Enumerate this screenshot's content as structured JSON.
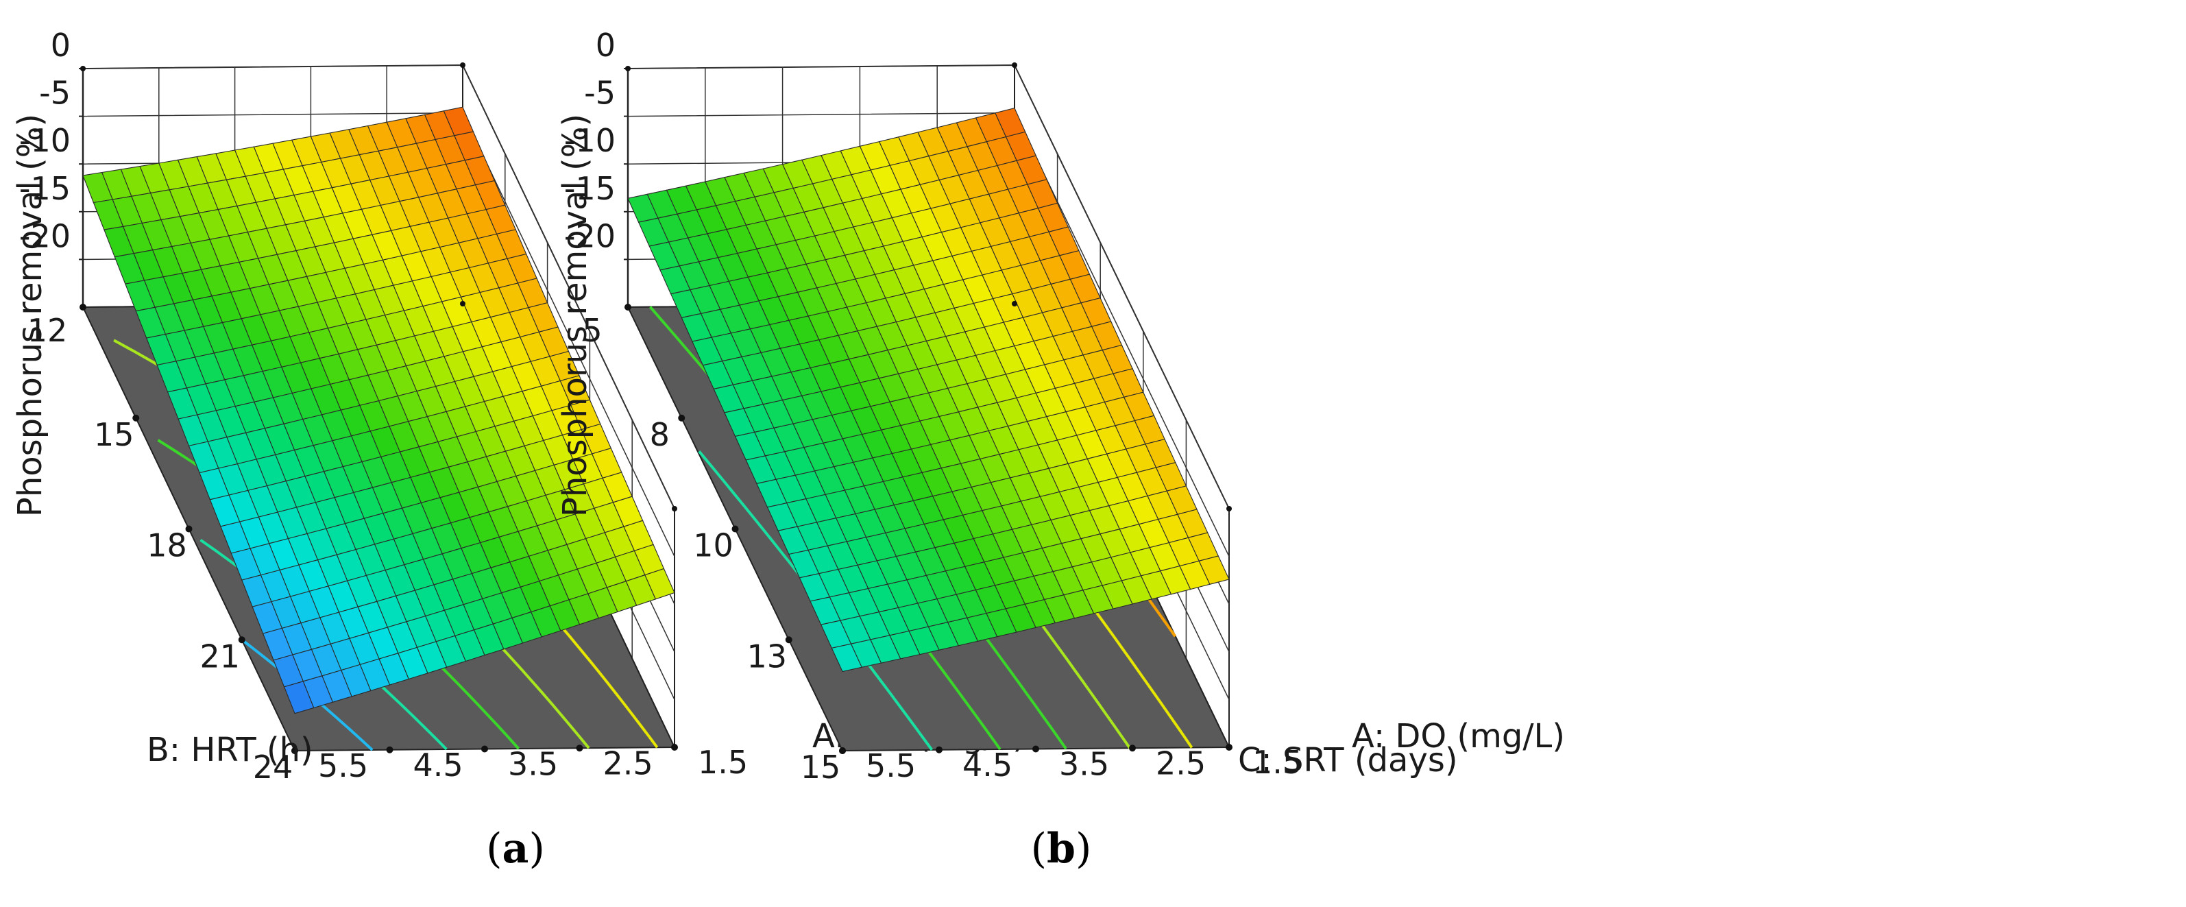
{
  "chart_data": [
    {
      "type": "surface3d",
      "panel_label": "a",
      "zlabel": "Phosphorus removal (%)",
      "z_ticks": [
        "0",
        "-5",
        "-10",
        "-15",
        "-20"
      ],
      "zlim": [
        -25,
        0
      ],
      "x_axis": {
        "label": "A: DO (mg/L)",
        "ticks": [
          "1.5",
          "2.5",
          "3.5",
          "4.5",
          "5.5"
        ],
        "range": [
          1.5,
          5.5
        ]
      },
      "y_axis": {
        "label": "B: HRT (h)",
        "ticks": [
          "12",
          "15",
          "18",
          "21",
          "24"
        ],
        "range": [
          12,
          24
        ]
      },
      "corner_values": {
        "DO_1.5_HRT_12": -4.4,
        "DO_5.5_HRT_12": -11.2,
        "DO_1.5_HRT_24": -8.8,
        "DO_5.5_HRT_24": -21.1
      },
      "floor_contours": [
        "orange",
        "yellow",
        "light-green",
        "green",
        "cyan-green",
        "cyan"
      ]
    },
    {
      "type": "surface3d",
      "panel_label": "b",
      "zlabel": "Phosphorus removal (%)",
      "z_ticks": [
        "0",
        "-5",
        "-10",
        "-15",
        "-20"
      ],
      "zlim": [
        -25,
        0
      ],
      "x_axis": {
        "label": "A: DO (mg/L)",
        "ticks": [
          "1.5",
          "2.5",
          "3.5",
          "4.5",
          "5.5"
        ],
        "range": [
          1.5,
          5.5
        ]
      },
      "y_axis": {
        "label": "C: SRT (days)",
        "ticks": [
          "5",
          "8",
          "10",
          "13",
          "15"
        ],
        "range": [
          5,
          15
        ]
      },
      "corner_values": {
        "DO_1.5_SRT_5": -4.5,
        "DO_5.5_SRT_5": -13.6,
        "DO_1.5_SRT_15": -7.4,
        "DO_5.5_SRT_15": -16.7
      },
      "floor_contours": [
        "orange",
        "yellow",
        "light-green",
        "green",
        "green",
        "cyan-green"
      ]
    }
  ]
}
